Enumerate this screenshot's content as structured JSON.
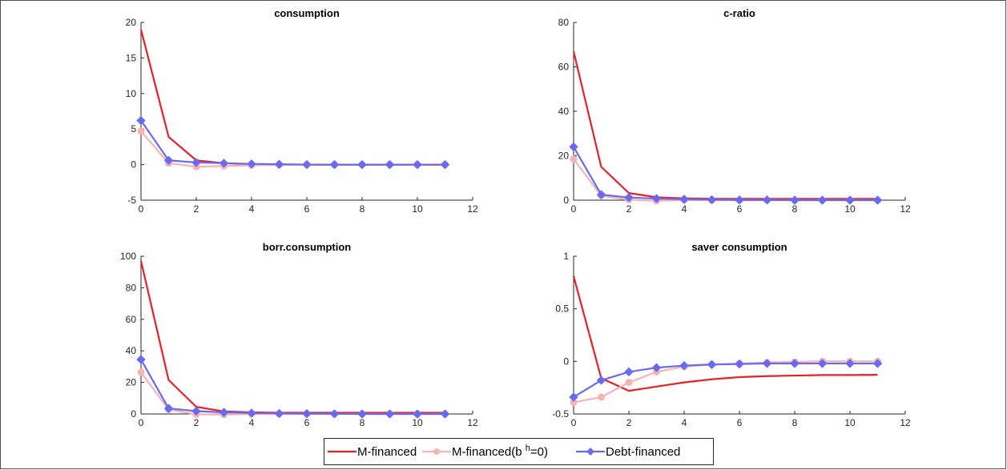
{
  "colors": {
    "m_financed": "#e8202a",
    "m_financed_bh0": "#f4b4b4",
    "debt_financed": "#6a6aef",
    "axis": "#262626"
  },
  "legend": {
    "entries": [
      {
        "label_parts": [
          "M-financed"
        ]
      },
      {
        "label_parts": [
          "M-financed(b ",
          "h",
          "=0)"
        ]
      },
      {
        "label_parts": [
          "Debt-financed"
        ]
      }
    ]
  },
  "chart_data": [
    {
      "type": "line",
      "title": "consumption",
      "xlabel": "",
      "ylabel": "",
      "xlim": [
        0,
        12
      ],
      "ylim": [
        -5,
        20
      ],
      "xticks": [
        0,
        2,
        4,
        6,
        8,
        10,
        12
      ],
      "yticks": [
        -5,
        0,
        5,
        10,
        15,
        20
      ],
      "x": [
        0,
        1,
        2,
        3,
        4,
        5,
        6,
        7,
        8,
        9,
        10,
        11
      ],
      "series": [
        {
          "name": "M-financed",
          "values": [
            19.0,
            3.9,
            0.6,
            0.2,
            0.05,
            0.0,
            0.0,
            0.0,
            0.0,
            0.0,
            0.0,
            0.0
          ]
        },
        {
          "name": "M-financed(b h=0)",
          "values": [
            4.7,
            0.2,
            -0.3,
            -0.2,
            -0.1,
            -0.05,
            0.0,
            0.0,
            0.0,
            0.0,
            0.0,
            0.0
          ]
        },
        {
          "name": "Debt-financed",
          "values": [
            6.2,
            0.6,
            0.3,
            0.2,
            0.1,
            0.05,
            0.0,
            0.0,
            0.0,
            0.0,
            0.0,
            0.0
          ]
        }
      ]
    },
    {
      "type": "line",
      "title": "c-ratio",
      "xlabel": "",
      "ylabel": "",
      "xlim": [
        0,
        12
      ],
      "ylim": [
        0,
        80
      ],
      "xticks": [
        0,
        2,
        4,
        6,
        8,
        10,
        12
      ],
      "yticks": [
        0,
        20,
        40,
        60,
        80
      ],
      "x": [
        0,
        1,
        2,
        3,
        4,
        5,
        6,
        7,
        8,
        9,
        10,
        11
      ],
      "series": [
        {
          "name": "M-financed",
          "values": [
            67,
            15,
            3.2,
            1.3,
            0.8,
            0.6,
            0.6,
            0.6,
            0.6,
            0.6,
            0.6,
            0.6
          ]
        },
        {
          "name": "M-financed(b h=0)",
          "values": [
            18.5,
            2.0,
            0.2,
            -0.3,
            0.0,
            0.0,
            0.0,
            0.0,
            0.0,
            0.0,
            0.0,
            0.0
          ]
        },
        {
          "name": "Debt-financed",
          "values": [
            24,
            2.5,
            1.2,
            0.7,
            0.4,
            0.2,
            0.1,
            0.1,
            0.0,
            0.0,
            0.0,
            0.0
          ]
        }
      ]
    },
    {
      "type": "line",
      "title": "borr.consumption",
      "xlabel": "",
      "ylabel": "",
      "xlim": [
        0,
        12
      ],
      "ylim": [
        0,
        100
      ],
      "xticks": [
        0,
        2,
        4,
        6,
        8,
        10,
        12
      ],
      "yticks": [
        0,
        20,
        40,
        60,
        80,
        100
      ],
      "x": [
        0,
        1,
        2,
        3,
        4,
        5,
        6,
        7,
        8,
        9,
        10,
        11
      ],
      "series": [
        {
          "name": "M-financed",
          "values": [
            97,
            21.5,
            4.5,
            1.6,
            1.0,
            0.8,
            0.8,
            0.8,
            0.8,
            0.8,
            0.8,
            0.8
          ]
        },
        {
          "name": "M-financed(b h=0)",
          "values": [
            26.5,
            2.8,
            -0.2,
            -0.4,
            0.0,
            0.0,
            0.0,
            0.0,
            0.0,
            0.0,
            0.0,
            0.0
          ]
        },
        {
          "name": "Debt-financed",
          "values": [
            34.5,
            3.5,
            1.8,
            1.0,
            0.6,
            0.3,
            0.2,
            0.1,
            0.0,
            0.0,
            0.0,
            0.0
          ]
        }
      ]
    },
    {
      "type": "line",
      "title": "saver consumption",
      "xlabel": "",
      "ylabel": "",
      "xlim": [
        0,
        12
      ],
      "ylim": [
        -0.5,
        1
      ],
      "xticks": [
        0,
        2,
        4,
        6,
        8,
        10,
        12
      ],
      "yticks": [
        -0.5,
        0,
        0.5,
        1
      ],
      "x": [
        0,
        1,
        2,
        3,
        4,
        5,
        6,
        7,
        8,
        9,
        10,
        11
      ],
      "series": [
        {
          "name": "M-financed",
          "values": [
            0.81,
            -0.16,
            -0.28,
            -0.24,
            -0.2,
            -0.17,
            -0.15,
            -0.14,
            -0.135,
            -0.13,
            -0.13,
            -0.128
          ]
        },
        {
          "name": "M-financed(b h=0)",
          "values": [
            -0.39,
            -0.34,
            -0.2,
            -0.1,
            -0.05,
            -0.03,
            -0.02,
            -0.01,
            -0.005,
            0.0,
            0.0,
            0.0
          ]
        },
        {
          "name": "Debt-financed",
          "values": [
            -0.34,
            -0.18,
            -0.1,
            -0.06,
            -0.04,
            -0.03,
            -0.025,
            -0.02,
            -0.02,
            -0.02,
            -0.02,
            -0.02
          ]
        }
      ]
    }
  ]
}
